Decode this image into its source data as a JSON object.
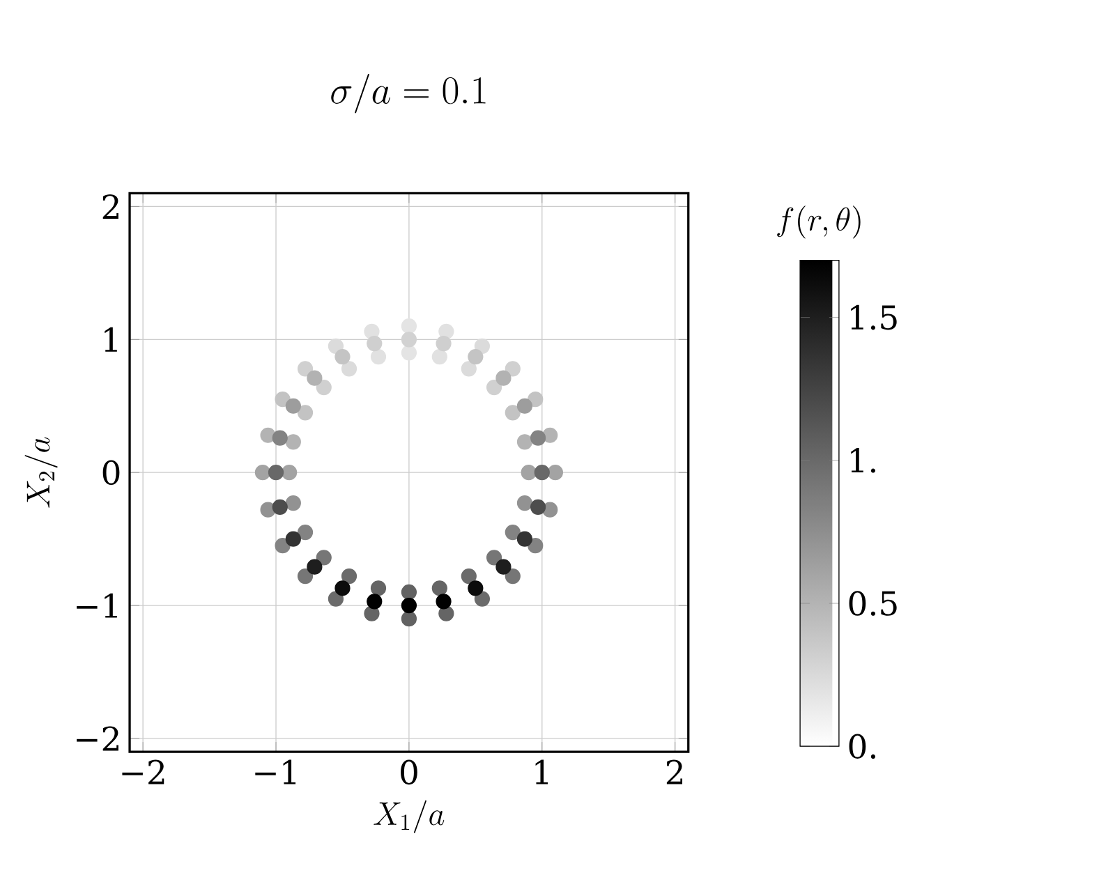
{
  "chart_data": {
    "type": "scatter",
    "title": "\\sigma/a = 0.1",
    "xlabel": "X_1/a",
    "ylabel": "X_2/a",
    "clabel": "f(r,\\theta)",
    "marker": "circle",
    "grid": true,
    "xlim": [
      -2.1,
      2.1
    ],
    "ylim": [
      -2.1,
      2.1
    ],
    "xticks": [
      {
        "value": -2,
        "label": "−2"
      },
      {
        "value": -1,
        "label": "−1"
      },
      0,
      1,
      2
    ],
    "yticks": [
      {
        "value": -2,
        "label": "−2"
      },
      {
        "value": -1,
        "label": "−1"
      },
      0,
      1,
      2
    ],
    "clim": [
      0,
      1.7
    ],
    "cticks": [
      {
        "value": 0,
        "label": "0."
      },
      {
        "value": 0.5,
        "label": "0.5"
      },
      {
        "value": 1,
        "label": "1."
      },
      {
        "value": 1.5,
        "label": "1.5"
      }
    ],
    "x": [
      0.9,
      0.87,
      0.78,
      0.64,
      0.45,
      0.23,
      0,
      -0.23,
      -0.45,
      -0.64,
      -0.78,
      -0.87,
      -0.9,
      -0.87,
      -0.78,
      -0.64,
      -0.45,
      -0.23,
      0,
      0.23,
      0.45,
      0.64,
      0.78,
      0.87,
      1.1,
      1.06,
      0.95,
      0.78,
      0.55,
      0.28,
      0,
      -0.28,
      -0.55,
      -0.78,
      -0.95,
      -1.06,
      -1.1,
      -1.06,
      -0.95,
      -0.78,
      -0.55,
      -0.28,
      0,
      0.28,
      0.55,
      0.78,
      0.95,
      1.06,
      1,
      0.97,
      0.87,
      0.71,
      0.5,
      0.26,
      0,
      -0.26,
      -0.5,
      -0.71,
      -0.87,
      -0.97,
      -1,
      -0.97,
      -0.87,
      -0.71,
      -0.5,
      -0.26,
      0,
      0.26,
      0.5,
      0.71,
      0.87,
      0.97
    ],
    "values": [
      0,
      0.23,
      0.45,
      0.64,
      0.78,
      0.87,
      0.9,
      0.87,
      0.78,
      0.64,
      0.45,
      0.23,
      0,
      -0.23,
      -0.45,
      -0.64,
      -0.78,
      -0.87,
      -0.9,
      -0.87,
      -0.78,
      -0.64,
      -0.45,
      -0.23,
      0,
      0.28,
      0.55,
      0.78,
      0.95,
      1.06,
      1.1,
      1.06,
      0.95,
      0.78,
      0.55,
      0.28,
      0,
      -0.28,
      -0.55,
      -0.78,
      -0.95,
      -1.06,
      -1.1,
      -1.06,
      -0.95,
      -0.78,
      -0.55,
      -0.28,
      0,
      0.26,
      0.5,
      0.71,
      0.87,
      0.97,
      1,
      0.97,
      0.87,
      0.71,
      0.5,
      0.26,
      0,
      -0.26,
      -0.5,
      -0.71,
      -0.87,
      -0.97,
      -1,
      -0.97,
      -0.87,
      -0.71,
      -0.5,
      -0.26
    ],
    "cvalues": [
      0.61,
      0.5,
      0.4,
      0.31,
      0.24,
      0.2,
      0.18,
      0.2,
      0.24,
      0.31,
      0.4,
      0.5,
      0.61,
      0.72,
      0.82,
      0.91,
      0.98,
      1.02,
      1.04,
      1.02,
      0.98,
      0.91,
      0.82,
      0.72,
      0.61,
      0.5,
      0.4,
      0.31,
      0.24,
      0.2,
      0.18,
      0.2,
      0.24,
      0.31,
      0.4,
      0.5,
      0.61,
      0.72,
      0.82,
      0.91,
      0.98,
      1.02,
      1.04,
      1.02,
      0.98,
      0.91,
      0.82,
      0.72,
      1.0,
      0.82,
      0.65,
      0.51,
      0.39,
      0.32,
      0.3,
      0.32,
      0.39,
      0.51,
      0.65,
      0.82,
      1.0,
      1.18,
      1.35,
      1.49,
      1.61,
      1.68,
      1.7,
      1.68,
      1.61,
      1.49,
      1.35,
      1.18
    ]
  }
}
